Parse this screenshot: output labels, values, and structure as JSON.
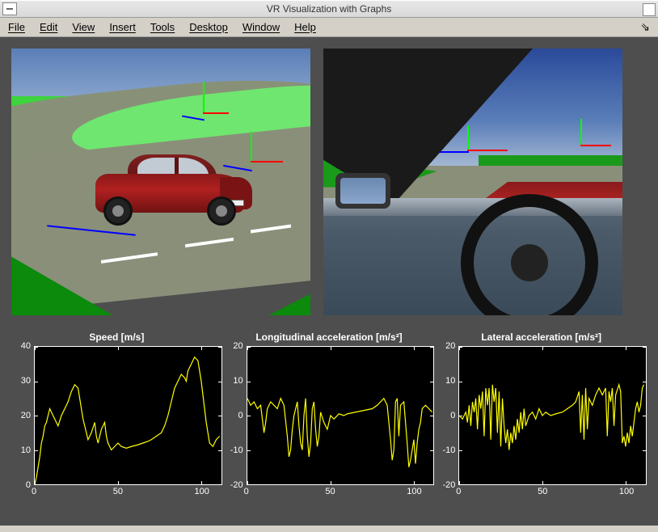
{
  "window": {
    "title": "VR Visualization with Graphs"
  },
  "menu": {
    "items": [
      "File",
      "Edit",
      "View",
      "Insert",
      "Tools",
      "Desktop",
      "Window",
      "Help"
    ]
  },
  "viewports": {
    "left": {
      "name": "exterior-chase-camera"
    },
    "right": {
      "name": "interior-cockpit-camera"
    }
  },
  "plots": [
    {
      "id": "speed",
      "title": "Speed [m/s]",
      "x": {
        "lim": [
          0,
          112
        ],
        "ticks": [
          0,
          50,
          100
        ]
      },
      "y": {
        "lim": [
          0,
          40
        ],
        "ticks": [
          0,
          10,
          20,
          30,
          40
        ]
      },
      "line_color": "#ffff00",
      "background_color": "#000000",
      "data": [
        [
          0,
          0
        ],
        [
          1,
          2
        ],
        [
          2,
          5
        ],
        [
          3,
          8
        ],
        [
          4,
          12
        ],
        [
          5,
          14
        ],
        [
          6,
          17
        ],
        [
          7,
          18
        ],
        [
          8,
          20
        ],
        [
          9,
          22
        ],
        [
          10,
          21
        ],
        [
          11,
          20
        ],
        [
          12,
          19
        ],
        [
          13,
          18
        ],
        [
          14,
          17
        ],
        [
          16,
          20
        ],
        [
          18,
          22
        ],
        [
          20,
          24
        ],
        [
          22,
          27
        ],
        [
          24,
          29
        ],
        [
          26,
          28
        ],
        [
          27,
          25
        ],
        [
          28,
          22
        ],
        [
          29,
          19
        ],
        [
          30,
          17
        ],
        [
          31,
          15
        ],
        [
          32,
          13
        ],
        [
          34,
          15
        ],
        [
          36,
          18
        ],
        [
          37,
          14
        ],
        [
          38,
          12
        ],
        [
          40,
          16
        ],
        [
          42,
          18
        ],
        [
          43,
          14
        ],
        [
          44,
          12
        ],
        [
          46,
          10
        ],
        [
          48,
          11
        ],
        [
          50,
          12
        ],
        [
          52,
          11
        ],
        [
          55,
          10.5
        ],
        [
          58,
          11
        ],
        [
          62,
          11.5
        ],
        [
          65,
          12
        ],
        [
          68,
          12.5
        ],
        [
          70,
          13
        ],
        [
          73,
          14
        ],
        [
          76,
          15
        ],
        [
          78,
          17
        ],
        [
          80,
          20
        ],
        [
          82,
          24
        ],
        [
          84,
          28
        ],
        [
          86,
          30
        ],
        [
          88,
          32
        ],
        [
          90,
          31
        ],
        [
          91,
          30
        ],
        [
          92,
          33
        ],
        [
          94,
          35
        ],
        [
          96,
          37
        ],
        [
          98,
          36
        ],
        [
          99,
          33
        ],
        [
          100,
          30
        ],
        [
          101,
          26
        ],
        [
          102,
          22
        ],
        [
          103,
          18
        ],
        [
          104,
          15
        ],
        [
          105,
          12
        ],
        [
          107,
          11
        ],
        [
          109,
          13
        ],
        [
          111,
          14
        ]
      ]
    },
    {
      "id": "long-accel",
      "title": "Longitudinal acceleration [m/s²]",
      "x": {
        "lim": [
          0,
          112
        ],
        "ticks": [
          0,
          50,
          100
        ]
      },
      "y": {
        "lim": [
          -20,
          20
        ],
        "ticks": [
          -20,
          -10,
          0,
          10,
          20
        ]
      },
      "line_color": "#ffff00",
      "background_color": "#000000",
      "data": [
        [
          0,
          5
        ],
        [
          2,
          3
        ],
        [
          4,
          4
        ],
        [
          6,
          2
        ],
        [
          8,
          3
        ],
        [
          10,
          -5
        ],
        [
          11,
          -2
        ],
        [
          12,
          2
        ],
        [
          14,
          4
        ],
        [
          16,
          3
        ],
        [
          18,
          2
        ],
        [
          20,
          5
        ],
        [
          22,
          3
        ],
        [
          24,
          -6
        ],
        [
          25,
          -12
        ],
        [
          26,
          -10
        ],
        [
          27,
          -4
        ],
        [
          28,
          0
        ],
        [
          30,
          4
        ],
        [
          31,
          -3
        ],
        [
          32,
          -8
        ],
        [
          33,
          -10
        ],
        [
          34,
          0
        ],
        [
          35,
          5
        ],
        [
          36,
          -6
        ],
        [
          37,
          -12
        ],
        [
          38,
          -8
        ],
        [
          39,
          2
        ],
        [
          40,
          4
        ],
        [
          41,
          -4
        ],
        [
          42,
          -9
        ],
        [
          43,
          -6
        ],
        [
          44,
          1
        ],
        [
          46,
          -2
        ],
        [
          48,
          -4
        ],
        [
          50,
          0
        ],
        [
          52,
          -1
        ],
        [
          55,
          0.5
        ],
        [
          58,
          0
        ],
        [
          60,
          0.5
        ],
        [
          65,
          1
        ],
        [
          70,
          1.5
        ],
        [
          75,
          2
        ],
        [
          78,
          3
        ],
        [
          80,
          4
        ],
        [
          82,
          5
        ],
        [
          84,
          3
        ],
        [
          86,
          -7
        ],
        [
          87,
          -13
        ],
        [
          88,
          -10
        ],
        [
          89,
          4
        ],
        [
          90,
          5
        ],
        [
          91,
          -6
        ],
        [
          92,
          3
        ],
        [
          94,
          4
        ],
        [
          96,
          -8
        ],
        [
          97,
          -15
        ],
        [
          98,
          -13
        ],
        [
          99,
          -10
        ],
        [
          100,
          -7
        ],
        [
          101,
          -14
        ],
        [
          102,
          -8
        ],
        [
          103,
          -4
        ],
        [
          104,
          -2
        ],
        [
          105,
          2
        ],
        [
          107,
          3
        ],
        [
          109,
          2
        ],
        [
          111,
          1
        ]
      ]
    },
    {
      "id": "lat-accel",
      "title": "Lateral acceleration [m/s²]",
      "x": {
        "lim": [
          0,
          112
        ],
        "ticks": [
          0,
          50,
          100
        ]
      },
      "y": {
        "lim": [
          -20,
          20
        ],
        "ticks": [
          -20,
          -10,
          0,
          10,
          20
        ]
      },
      "line_color": "#ffff00",
      "background_color": "#000000",
      "data": [
        [
          0,
          0
        ],
        [
          2,
          -1
        ],
        [
          4,
          1
        ],
        [
          5,
          -2
        ],
        [
          6,
          3
        ],
        [
          7,
          -3
        ],
        [
          8,
          4
        ],
        [
          9,
          1
        ],
        [
          10,
          5
        ],
        [
          11,
          -4
        ],
        [
          12,
          6
        ],
        [
          13,
          2
        ],
        [
          14,
          7
        ],
        [
          15,
          -6
        ],
        [
          16,
          8
        ],
        [
          17,
          3
        ],
        [
          18,
          8
        ],
        [
          19,
          -7
        ],
        [
          20,
          9
        ],
        [
          21,
          4
        ],
        [
          22,
          8
        ],
        [
          23,
          -5
        ],
        [
          24,
          7
        ],
        [
          25,
          -9
        ],
        [
          26,
          5
        ],
        [
          27,
          -3
        ],
        [
          28,
          -8
        ],
        [
          29,
          -4
        ],
        [
          30,
          -10
        ],
        [
          31,
          -5
        ],
        [
          32,
          -8
        ],
        [
          33,
          -3
        ],
        [
          34,
          -7
        ],
        [
          35,
          -1
        ],
        [
          36,
          -5
        ],
        [
          37,
          1
        ],
        [
          38,
          -4
        ],
        [
          39,
          2
        ],
        [
          40,
          -3
        ],
        [
          42,
          0
        ],
        [
          44,
          1
        ],
        [
          46,
          -1
        ],
        [
          48,
          2
        ],
        [
          50,
          0
        ],
        [
          52,
          1
        ],
        [
          55,
          0
        ],
        [
          58,
          0.5
        ],
        [
          62,
          1
        ],
        [
          65,
          2
        ],
        [
          68,
          3
        ],
        [
          70,
          4
        ],
        [
          72,
          7
        ],
        [
          73,
          -5
        ],
        [
          74,
          6
        ],
        [
          75,
          -7
        ],
        [
          76,
          8
        ],
        [
          77,
          -4
        ],
        [
          78,
          5
        ],
        [
          80,
          3
        ],
        [
          82,
          6
        ],
        [
          84,
          8
        ],
        [
          86,
          6
        ],
        [
          88,
          8
        ],
        [
          89,
          -6
        ],
        [
          90,
          7
        ],
        [
          91,
          4
        ],
        [
          92,
          8
        ],
        [
          93,
          -3
        ],
        [
          94,
          6
        ],
        [
          96,
          9
        ],
        [
          97,
          7
        ],
        [
          98,
          -8
        ],
        [
          99,
          -6
        ],
        [
          100,
          -9
        ],
        [
          101,
          -5
        ],
        [
          102,
          -8
        ],
        [
          103,
          -3
        ],
        [
          104,
          -6
        ],
        [
          105,
          -2
        ],
        [
          106,
          2
        ],
        [
          107,
          4
        ],
        [
          108,
          1
        ],
        [
          109,
          3
        ],
        [
          110,
          8
        ],
        [
          111,
          9
        ]
      ]
    }
  ],
  "style": {
    "content_bg": "#4e4e4e",
    "axis_color": "#ffffff",
    "text_color": "#ffffff",
    "tick_fontsize": 11,
    "title_fontsize": 12
  }
}
